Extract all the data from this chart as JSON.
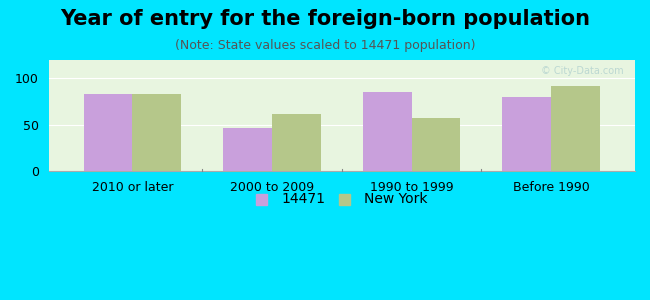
{
  "title": "Year of entry for the foreign-born population",
  "subtitle": "(Note: State values scaled to 14471 population)",
  "categories": [
    "2010 or later",
    "2000 to 2009",
    "1990 to 1999",
    "Before 1990"
  ],
  "values_14471": [
    83,
    46,
    85,
    80
  ],
  "values_ny": [
    83,
    62,
    57,
    92
  ],
  "bar_color_14471": "#c9a0dc",
  "bar_color_ny": "#b5c78a",
  "background_outer": "#00e5ff",
  "background_chart": "#e8f5e0",
  "ylim": [
    0,
    120
  ],
  "yticks": [
    0,
    50,
    100
  ],
  "bar_width": 0.35,
  "legend_label_14471": "14471",
  "legend_label_ny": "New York",
  "title_fontsize": 15,
  "subtitle_fontsize": 9,
  "tick_fontsize": 9,
  "legend_fontsize": 10
}
